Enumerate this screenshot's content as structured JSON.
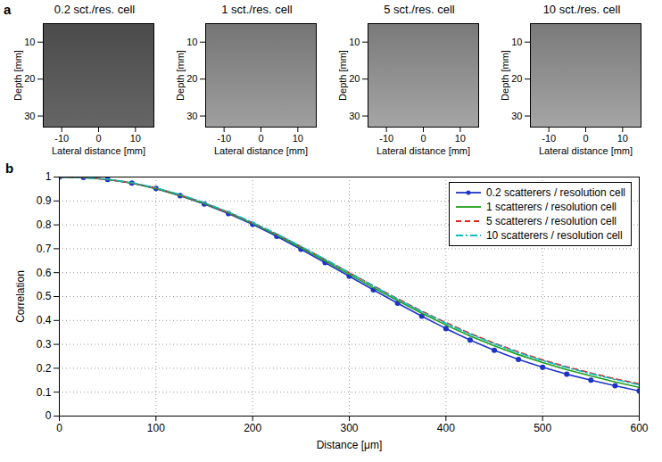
{
  "chart_data": [
    {
      "type": "image",
      "panel": "a",
      "title": "0.2 sct./res. cell",
      "xlabel": "Lateral distance [mm]",
      "ylabel": "Depth [mm]",
      "xlim": [
        -15,
        15
      ],
      "ylim": [
        5,
        33
      ],
      "xticks": [
        -10,
        0,
        10
      ],
      "yticks": [
        10,
        20,
        30
      ],
      "color": "#555555"
    },
    {
      "type": "image",
      "title": "1 sct./res. cell",
      "xlabel": "Lateral distance [mm]",
      "ylabel": "Depth [mm]",
      "xlim": [
        -15,
        15
      ],
      "ylim": [
        5,
        33
      ],
      "xticks": [
        -10,
        0,
        10
      ],
      "yticks": [
        10,
        20,
        30
      ],
      "color": "#858585"
    },
    {
      "type": "image",
      "title": "5 sct./res. cell",
      "xlabel": "Lateral distance [mm]",
      "ylabel": "Depth [mm]",
      "xlim": [
        -15,
        15
      ],
      "ylim": [
        5,
        33
      ],
      "xticks": [
        -10,
        0,
        10
      ],
      "yticks": [
        10,
        20,
        30
      ],
      "color": "#8a8a8a"
    },
    {
      "type": "image",
      "title": "10 sct./res. cell",
      "xlabel": "Lateral distance [mm]",
      "ylabel": "Depth [mm]",
      "xlim": [
        -15,
        15
      ],
      "ylim": [
        5,
        33
      ],
      "xticks": [
        -10,
        0,
        10
      ],
      "yticks": [
        10,
        20,
        30
      ],
      "color": "#8a8a8a"
    },
    {
      "type": "line",
      "panel": "b",
      "xlabel": "Distance [μm]",
      "ylabel": "Correlation",
      "xlim": [
        0,
        600
      ],
      "ylim": [
        0,
        1
      ],
      "xticks": [
        0,
        100,
        200,
        300,
        400,
        500,
        600
      ],
      "yticks": [
        0,
        0.1,
        0.2,
        0.3,
        0.4,
        0.5,
        0.6,
        0.7,
        0.8,
        0.9,
        1
      ],
      "grid": true,
      "legend": "top-right",
      "x": [
        0,
        25,
        50,
        75,
        100,
        125,
        150,
        175,
        200,
        225,
        250,
        275,
        300,
        325,
        350,
        375,
        400,
        425,
        450,
        475,
        500,
        525,
        550,
        575,
        600
      ],
      "series": [
        {
          "name": "0.2 scatterers / resolution cell",
          "color": "#1f33c8",
          "marker": "circle",
          "line_style": "solid",
          "values": [
            1,
            0.998,
            0.99,
            0.975,
            0.952,
            0.922,
            0.887,
            0.847,
            0.802,
            0.752,
            0.698,
            0.642,
            0.585,
            0.528,
            0.472,
            0.418,
            0.366,
            0.318,
            0.275,
            0.237,
            0.204,
            0.175,
            0.15,
            0.127,
            0.105
          ]
        },
        {
          "name": "1 scatterers / resolution cell",
          "color": "#1e9e1e",
          "line_style": "solid",
          "values": [
            1,
            0.998,
            0.99,
            0.975,
            0.952,
            0.923,
            0.889,
            0.85,
            0.806,
            0.757,
            0.704,
            0.649,
            0.593,
            0.537,
            0.483,
            0.43,
            0.381,
            0.335,
            0.294,
            0.257,
            0.224,
            0.194,
            0.168,
            0.143,
            0.12
          ]
        },
        {
          "name": "5 scatterers / resolution cell",
          "color": "#e0201e",
          "line_style": "dashed",
          "values": [
            1,
            0.998,
            0.99,
            0.976,
            0.954,
            0.925,
            0.891,
            0.852,
            0.809,
            0.761,
            0.709,
            0.655,
            0.6,
            0.545,
            0.491,
            0.439,
            0.391,
            0.346,
            0.305,
            0.268,
            0.235,
            0.206,
            0.18,
            0.156,
            0.135
          ]
        },
        {
          "name": "10 scatterers / resolution cell",
          "color": "#10bcc0",
          "line_style": "dashdot",
          "values": [
            1,
            0.998,
            0.991,
            0.977,
            0.955,
            0.927,
            0.893,
            0.854,
            0.81,
            0.762,
            0.71,
            0.656,
            0.6,
            0.544,
            0.489,
            0.437,
            0.388,
            0.343,
            0.302,
            0.265,
            0.232,
            0.203,
            0.177,
            0.153,
            0.131
          ]
        }
      ]
    }
  ]
}
